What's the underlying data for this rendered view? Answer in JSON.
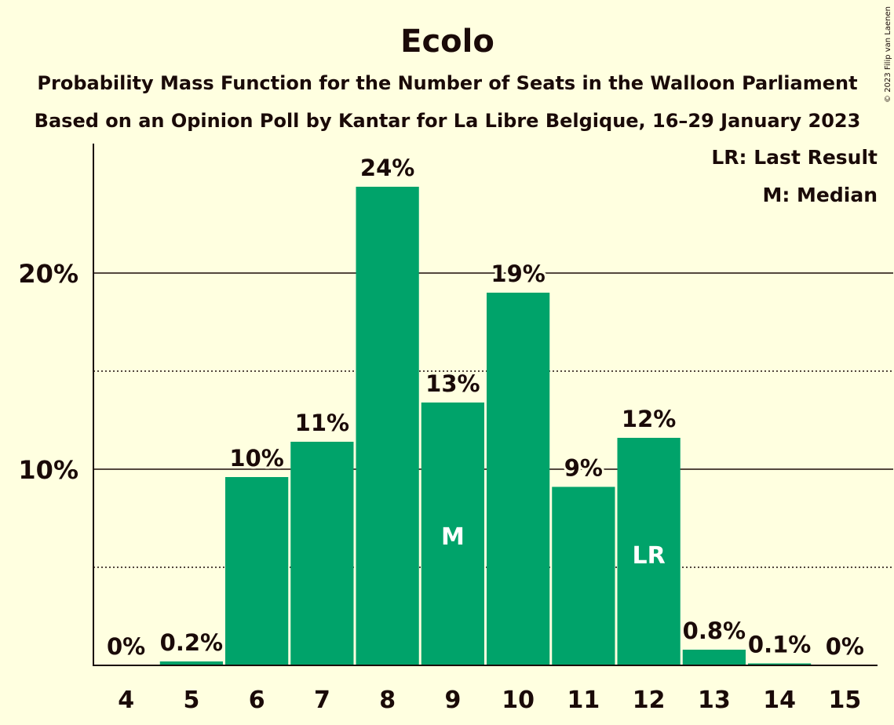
{
  "colors": {
    "background": "#ffffe0",
    "bar": "#00a36a",
    "text": "#1a0a08",
    "inner_text": "#ffffff"
  },
  "copyright": "© 2023 Filip van Laenen",
  "chart_data": {
    "type": "bar",
    "title": "Ecolo",
    "subtitle_lines": [
      "Probability Mass Function for the Number of Seats in the Walloon Parliament",
      "Based on an Opinion Poll by Kantar for La Libre Belgique, 16–29 January 2023"
    ],
    "xlabel": "",
    "ylabel": "",
    "categories": [
      "4",
      "5",
      "6",
      "7",
      "8",
      "9",
      "10",
      "11",
      "12",
      "13",
      "14",
      "15"
    ],
    "values": [
      0,
      0.2,
      9.6,
      11.4,
      24.4,
      13.4,
      19,
      9.1,
      11.6,
      0.8,
      0.1,
      0
    ],
    "value_labels": [
      "0%",
      "0.2%",
      "10%",
      "11%",
      "24%",
      "13%",
      "19%",
      "9%",
      "12%",
      "0.8%",
      "0.1%",
      "0%"
    ],
    "ylim": [
      0,
      26.6
    ],
    "yticks": [
      {
        "value": 10,
        "label": "10%"
      },
      {
        "value": 20,
        "label": "20%"
      }
    ],
    "grid": {
      "major": [
        10,
        20
      ],
      "minor": [
        5,
        15
      ]
    },
    "median_category": "9",
    "median_marker": "M",
    "last_result_category": "12",
    "last_result_marker": "LR",
    "legend": {
      "placement": "top-right",
      "entries": [
        "LR: Last Result",
        "M: Median"
      ]
    }
  }
}
